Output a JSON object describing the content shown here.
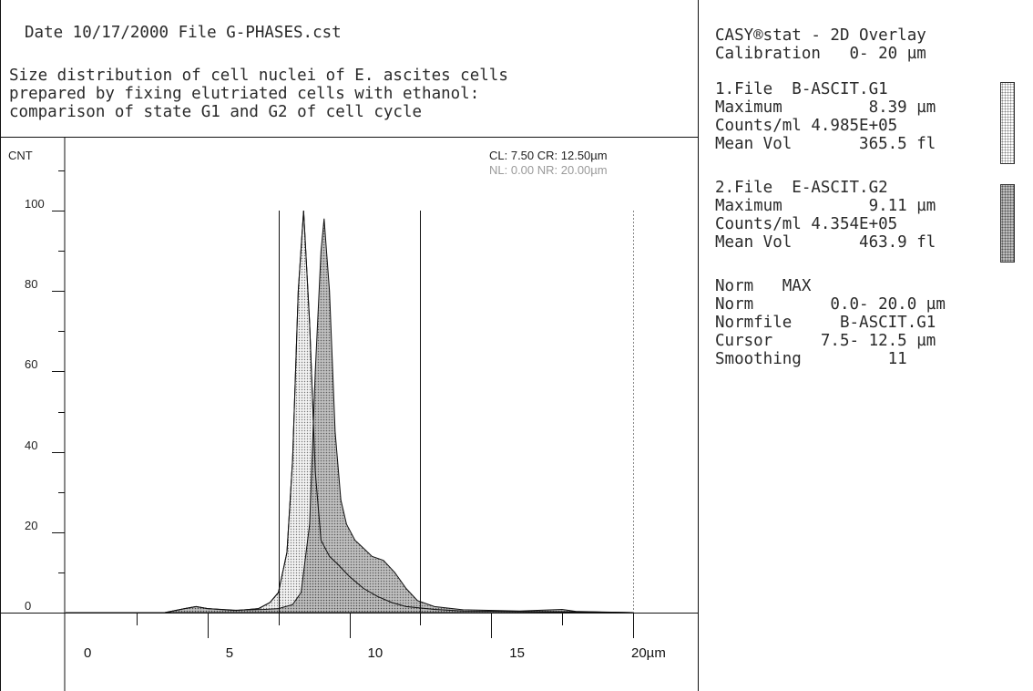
{
  "header": {
    "line1": "Date 10/17/2000 File G-PHASES.cst",
    "desc_lines": [
      "Size distribution of cell nuclei of E. ascites cells",
      "prepared by fixing elutriated cells with ethanol:",
      "comparison of state G1 and G2 of cell cycle"
    ]
  },
  "sidebar": {
    "title_line1": "CASY®stat - 2D Overlay",
    "title_line2": "Calibration   0- 20 µm",
    "files": [
      {
        "name_line": "1.File  B-ASCIT.G1",
        "maximum_line": "Maximum         8.39 µm",
        "counts_line": "Counts/ml 4.985E+05",
        "meanvol_line": "Mean Vol       365.5 fl",
        "fill": "dotted-light"
      },
      {
        "name_line": "2.File  E-ASCIT.G2",
        "maximum_line": "Maximum         9.11 µm",
        "counts_line": "Counts/ml 4.354E+05",
        "meanvol_line": "Mean Vol       463.9 fl",
        "fill": "dotted-dark"
      }
    ],
    "settings": [
      "Norm   MAX",
      "Norm        0.0- 20.0 µm",
      "Normfile     B-ASCIT.G1",
      "Cursor     7.5- 12.5 µm",
      "Smoothing         11"
    ]
  },
  "cursor_text": {
    "cl_cr": "CL: 7.50 CR: 12.50µm",
    "nl_nr": "NL: 0.00 NR: 20.00µm"
  },
  "colors": {
    "series1_fill": "#cfcfcf",
    "series2_fill": "#9a9a9a",
    "line": "#111111",
    "nl_nr_text": "#9a9a9a"
  },
  "chart_data": {
    "type": "area",
    "ylabel": "CNT",
    "xlim": [
      0,
      20
    ],
    "ylim": [
      0,
      110
    ],
    "x_unit": "µm",
    "y_ticks": [
      0,
      20,
      40,
      60,
      80,
      100
    ],
    "x_tick_labels": [
      "0",
      "5",
      "10",
      "15",
      "20µm"
    ],
    "x_tick_values": [
      0,
      5,
      10,
      15,
      20
    ],
    "cursors": [
      7.5,
      12.5
    ],
    "norm_right": 20,
    "series": [
      {
        "name": "B-ASCIT.G1",
        "x": [
          0,
          3.5,
          4.2,
          4.6,
          5,
          6,
          6.8,
          7.2,
          7.5,
          7.8,
          8.0,
          8.2,
          8.39,
          8.6,
          8.8,
          9.0,
          9.3,
          9.6,
          10,
          10.5,
          11,
          11.5,
          12,
          13,
          14,
          16,
          18,
          20
        ],
        "values": [
          0,
          0,
          1,
          1.5,
          1,
          0.5,
          1,
          2.5,
          5,
          15,
          38,
          80,
          100,
          72,
          35,
          18,
          14,
          12,
          9,
          6,
          4,
          2.5,
          1.5,
          0.8,
          0.4,
          0.3,
          0.2,
          0
        ]
      },
      {
        "name": "E-ASCIT.G2",
        "x": [
          0,
          3.5,
          4.2,
          4.6,
          5,
          6,
          7,
          7.5,
          8.0,
          8.3,
          8.6,
          8.8,
          9.0,
          9.11,
          9.3,
          9.5,
          9.7,
          9.9,
          10.2,
          10.5,
          10.8,
          11.2,
          11.6,
          12,
          12.4,
          13,
          14,
          16,
          17.5,
          18,
          20
        ],
        "values": [
          0,
          0,
          1,
          1.5,
          1,
          0.6,
          0.8,
          1,
          2,
          5,
          22,
          60,
          90,
          98,
          80,
          45,
          28,
          22,
          18,
          16,
          14,
          13,
          10,
          6,
          3,
          1.5,
          0.7,
          0.4,
          0.8,
          0.3,
          0
        ]
      }
    ]
  }
}
